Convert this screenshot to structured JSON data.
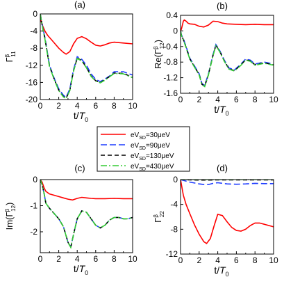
{
  "chart_data": [
    {
      "panel": "(a)",
      "type": "line",
      "ylabel_main": "Γ",
      "ylabel_sup": "β",
      "ylabel_sub": "11",
      "xlabel_main": "t/",
      "xlabel_it": "T",
      "xlabel_sub": "0",
      "xlim": [
        0,
        10
      ],
      "ylim": [
        -20,
        0
      ],
      "xticks": [
        0,
        2,
        4,
        6,
        8,
        10
      ],
      "yticks": [
        0,
        -4,
        -8,
        -12,
        -16,
        -20
      ],
      "series": [
        {
          "style": "solid",
          "color": "#ff0000",
          "x": [
            0,
            0.1,
            0.3,
            0.5,
            0.8,
            1.2,
            1.6,
            2,
            2.5,
            2.8,
            3.2,
            3.6,
            4,
            4.5,
            5,
            5.5,
            6,
            6.5,
            7,
            7.5,
            8,
            9,
            10
          ],
          "y": [
            0,
            -1.8,
            -3,
            -4,
            -5,
            -6,
            -7,
            -8,
            -9,
            -9.4,
            -8.8,
            -7,
            -5.7,
            -5.3,
            -5.8,
            -6.6,
            -7.3,
            -7.5,
            -7.2,
            -6.8,
            -6.6,
            -6.8,
            -7.0
          ]
        },
        {
          "style": "longdash",
          "color": "#1f3dff",
          "x": [
            0,
            0.2,
            0.5,
            1,
            1.5,
            2,
            2.5,
            2.8,
            3.2,
            3.6,
            4,
            4.5,
            5,
            5.5,
            6,
            6.5,
            7,
            7.5,
            8,
            9,
            10
          ],
          "y": [
            0,
            -2.5,
            -5.5,
            -12,
            -15,
            -17.5,
            -19,
            -19.5,
            -17.5,
            -13,
            -10,
            -10.6,
            -12,
            -14,
            -15.3,
            -15.8,
            -15.2,
            -14.5,
            -13.5,
            -13.5,
            -14.3
          ]
        },
        {
          "style": "dash",
          "color": "#000000",
          "x": [
            0,
            0.2,
            0.5,
            1,
            1.5,
            2,
            2.5,
            2.8,
            3.2,
            3.6,
            4,
            4.5,
            5,
            5.5,
            6,
            6.5,
            7,
            7.5,
            8,
            9,
            10
          ],
          "y": [
            0,
            -2.6,
            -5.8,
            -12.2,
            -15.2,
            -17.8,
            -19.3,
            -19.7,
            -17.8,
            -13.3,
            -10.3,
            -10.9,
            -12.5,
            -14.5,
            -15.6,
            -16,
            -15.4,
            -14.6,
            -13.8,
            -13.9,
            -14.8
          ]
        },
        {
          "style": "dashdot",
          "color": "#33cc33",
          "x": [
            0,
            0.2,
            0.5,
            1,
            1.5,
            2,
            2.5,
            2.8,
            3.2,
            3.6,
            4,
            4.5,
            5,
            5.5,
            6,
            6.5,
            7,
            7.5,
            8,
            9,
            10
          ],
          "y": [
            0,
            -2.6,
            -5.9,
            -12.3,
            -15.3,
            -17.9,
            -19.4,
            -19.8,
            -17.9,
            -13.4,
            -10.4,
            -11,
            -12.6,
            -14.6,
            -15.7,
            -16.1,
            -15.5,
            -14.7,
            -13.9,
            -14,
            -14.9
          ]
        }
      ]
    },
    {
      "panel": "(b)",
      "type": "line",
      "ylabel_main": "Re(Γ",
      "ylabel_sup": "β",
      "ylabel_sub": "12",
      "ylabel_tail": ")",
      "xlabel_main": "t/",
      "xlabel_it": "T",
      "xlabel_sub": "0",
      "xlim": [
        0,
        10
      ],
      "ylim": [
        -1.6,
        0.4
      ],
      "xticks": [
        0,
        2,
        4,
        6,
        8,
        10
      ],
      "yticks": [
        "0.4",
        "0",
        "-0.4",
        "-0.8",
        "-1.2",
        "-1.6"
      ],
      "series": [
        {
          "style": "solid",
          "color": "#ff0000",
          "x": [
            0,
            0.1,
            0.2,
            0.3,
            0.4,
            0.6,
            0.8,
            1,
            1.5,
            2,
            2.5,
            3,
            3.5,
            4,
            4.5,
            5,
            6,
            7,
            8,
            9,
            10
          ],
          "y": [
            0,
            0.05,
            0.15,
            0.25,
            0.28,
            0.25,
            0.2,
            0.18,
            0.17,
            0.12,
            0.1,
            0.15,
            0.25,
            0.24,
            0.2,
            0.18,
            0.17,
            0.16,
            0.17,
            0.16,
            0.16
          ]
        },
        {
          "style": "longdash",
          "color": "#1f3dff",
          "x": [
            0,
            0.1,
            0.3,
            0.6,
            1,
            1.5,
            2,
            2.3,
            2.6,
            3,
            3.5,
            3.8,
            4.2,
            4.7,
            5.2,
            5.8,
            6.5,
            7,
            7.5,
            8,
            9,
            10
          ],
          "y": [
            0,
            -0.1,
            -0.2,
            -0.4,
            -0.7,
            -0.9,
            -1.1,
            -1.35,
            -1.4,
            -1.1,
            -0.6,
            -0.35,
            -0.5,
            -0.75,
            -0.95,
            -1.0,
            -0.85,
            -0.72,
            -0.75,
            -0.85,
            -0.8,
            -0.85
          ]
        },
        {
          "style": "dash",
          "color": "#000000",
          "x": [
            0,
            0.1,
            0.3,
            0.6,
            1,
            1.5,
            2,
            2.3,
            2.6,
            3,
            3.5,
            3.8,
            4.2,
            4.7,
            5.2,
            5.8,
            6.5,
            7,
            7.5,
            8,
            9,
            10
          ],
          "y": [
            0,
            -0.12,
            -0.22,
            -0.42,
            -0.72,
            -0.92,
            -1.12,
            -1.37,
            -1.42,
            -1.12,
            -0.62,
            -0.37,
            -0.52,
            -0.77,
            -0.97,
            -1.02,
            -0.87,
            -0.74,
            -0.77,
            -0.87,
            -0.82,
            -0.87
          ]
        },
        {
          "style": "dashdot",
          "color": "#33cc33",
          "x": [
            0,
            0.1,
            0.3,
            0.6,
            1,
            1.5,
            2,
            2.3,
            2.6,
            3,
            3.5,
            3.8,
            4.2,
            4.7,
            5.2,
            5.8,
            6.5,
            7,
            7.5,
            8,
            9,
            10
          ],
          "y": [
            0,
            -0.12,
            -0.23,
            -0.43,
            -0.73,
            -0.93,
            -1.13,
            -1.38,
            -1.43,
            -1.13,
            -0.63,
            -0.38,
            -0.53,
            -0.78,
            -0.98,
            -1.03,
            -0.88,
            -0.75,
            -0.78,
            -0.88,
            -0.83,
            -0.88
          ]
        }
      ]
    },
    {
      "panel": "(c)",
      "type": "line",
      "ylabel_main": "Im(Γ",
      "ylabel_sup": "β",
      "ylabel_sub": "12",
      "ylabel_tail": ")",
      "xlabel_main": "t/",
      "xlabel_it": "T",
      "xlabel_sub": "0",
      "xlim": [
        0,
        10
      ],
      "ylim": [
        -2.8,
        0
      ],
      "xticks": [
        0,
        2,
        4,
        6,
        8,
        10
      ],
      "yticks": [
        0,
        -1,
        -2
      ],
      "series": [
        {
          "style": "solid",
          "color": "#ff0000",
          "x": [
            0,
            0.2,
            0.4,
            0.6,
            1,
            1.5,
            2,
            2.5,
            3,
            3.5,
            4,
            4.5,
            5,
            5.5,
            6,
            7,
            8,
            9,
            10
          ],
          "y": [
            0,
            -0.1,
            -0.3,
            -0.45,
            -0.55,
            -0.6,
            -0.65,
            -0.7,
            -0.75,
            -0.78,
            -0.72,
            -0.68,
            -0.7,
            -0.72,
            -0.73,
            -0.73,
            -0.72,
            -0.73,
            -0.73
          ]
        },
        {
          "style": "longdash",
          "color": "#1f3dff",
          "x": [
            0,
            0.2,
            0.4,
            0.6,
            1,
            1.5,
            2,
            2.5,
            3,
            3.3,
            3.6,
            4,
            4.5,
            5,
            5.5,
            6,
            6.5,
            7,
            7.5,
            8,
            8.5,
            9,
            9.5,
            10
          ],
          "y": [
            0,
            -0.2,
            -0.5,
            -0.9,
            -1.1,
            -1.3,
            -1.5,
            -1.8,
            -2.4,
            -2.58,
            -2.1,
            -1.5,
            -1.2,
            -1.25,
            -1.5,
            -1.75,
            -1.85,
            -1.75,
            -1.55,
            -1.45,
            -1.45,
            -1.5,
            -1.5,
            -1.45
          ]
        },
        {
          "style": "dash",
          "color": "#000000",
          "x": [
            0,
            0.2,
            0.4,
            0.6,
            1,
            1.5,
            2,
            2.5,
            3,
            3.3,
            3.6,
            4,
            4.5,
            5,
            5.5,
            6,
            6.5,
            7,
            7.5,
            8,
            8.5,
            9,
            9.5,
            10
          ],
          "y": [
            0,
            -0.2,
            -0.5,
            -0.9,
            -1.1,
            -1.3,
            -1.5,
            -1.8,
            -2.4,
            -2.6,
            -2.1,
            -1.5,
            -1.2,
            -1.25,
            -1.5,
            -1.75,
            -1.85,
            -1.75,
            -1.55,
            -1.45,
            -1.45,
            -1.5,
            -1.5,
            -1.45
          ]
        },
        {
          "style": "dashdot",
          "color": "#33cc33",
          "x": [
            0,
            0.2,
            0.4,
            0.6,
            1,
            1.5,
            2,
            2.5,
            3,
            3.3,
            3.6,
            4,
            4.5,
            5,
            5.5,
            6,
            6.5,
            7,
            7.5,
            8,
            8.5,
            9,
            9.5,
            10
          ],
          "y": [
            0,
            -0.2,
            -0.5,
            -0.9,
            -1.1,
            -1.3,
            -1.5,
            -1.8,
            -2.4,
            -2.6,
            -2.1,
            -1.5,
            -1.2,
            -1.25,
            -1.5,
            -1.75,
            -1.85,
            -1.75,
            -1.55,
            -1.45,
            -1.45,
            -1.5,
            -1.5,
            -1.45
          ]
        }
      ]
    },
    {
      "panel": "(d)",
      "type": "line",
      "ylabel_main": "Γ",
      "ylabel_sup": "β",
      "ylabel_sub": "22",
      "xlabel_main": "t/",
      "xlabel_it": "T",
      "xlabel_sub": "0",
      "xlim": [
        0,
        10
      ],
      "ylim": [
        -12,
        0
      ],
      "xticks": [
        0,
        2,
        4,
        6,
        8,
        10
      ],
      "yticks": [
        0,
        -4,
        -8,
        -12
      ],
      "series": [
        {
          "style": "solid",
          "color": "#ff0000",
          "x": [
            0,
            0.3,
            0.6,
            1,
            1.5,
            2,
            2.5,
            2.8,
            3.2,
            3.6,
            4,
            4.5,
            5,
            5.5,
            6,
            6.5,
            7,
            7.5,
            8,
            8.5,
            9,
            10
          ],
          "y": [
            0,
            -2.5,
            -4,
            -5.5,
            -7.3,
            -8.8,
            -10,
            -10.3,
            -9.5,
            -7.5,
            -5.6,
            -5.8,
            -6.8,
            -7.7,
            -8.2,
            -8.3,
            -8.0,
            -7.4,
            -7.0,
            -7.0,
            -7.2,
            -7.6
          ]
        },
        {
          "style": "longdash",
          "color": "#1f3dff",
          "x": [
            0,
            0.5,
            1,
            1.5,
            2,
            2.5,
            3,
            3.5,
            4,
            4.5,
            5,
            6,
            7,
            8,
            9,
            10
          ],
          "y": [
            0,
            -0.2,
            -0.4,
            -0.55,
            -0.7,
            -0.8,
            -0.8,
            -0.6,
            -0.5,
            -0.6,
            -0.7,
            -0.75,
            -0.7,
            -0.6,
            -0.65,
            -0.65
          ]
        },
        {
          "style": "dash",
          "color": "#000000",
          "x": [
            0,
            1,
            2,
            3,
            4,
            5,
            6,
            7,
            8,
            9,
            10
          ],
          "y": [
            0,
            -0.05,
            -0.08,
            -0.08,
            -0.05,
            -0.05,
            -0.06,
            -0.06,
            -0.05,
            -0.05,
            -0.05
          ]
        },
        {
          "style": "dashdot",
          "color": "#33cc33",
          "x": [
            0,
            1,
            2,
            3,
            4,
            5,
            6,
            7,
            8,
            9,
            10
          ],
          "y": [
            0,
            0,
            0,
            0,
            0,
            0,
            0,
            0,
            0,
            0,
            0
          ]
        }
      ]
    }
  ],
  "legend": {
    "entries": [
      {
        "label": "eV",
        "label_sub": "SD",
        "label_value": "=30μeV",
        "style": "solid",
        "color": "#ff0000"
      },
      {
        "label": "eV",
        "label_sub": "SD",
        "label_value": "=90μeV",
        "style": "longdash",
        "color": "#1f3dff"
      },
      {
        "label": "eV",
        "label_sub": "SD",
        "label_value": "=130μeV",
        "style": "dash",
        "color": "#000000"
      },
      {
        "label": "eV",
        "label_sub": "SD",
        "label_value": "=430μeV",
        "style": "dashdot",
        "color": "#33cc33"
      }
    ]
  }
}
